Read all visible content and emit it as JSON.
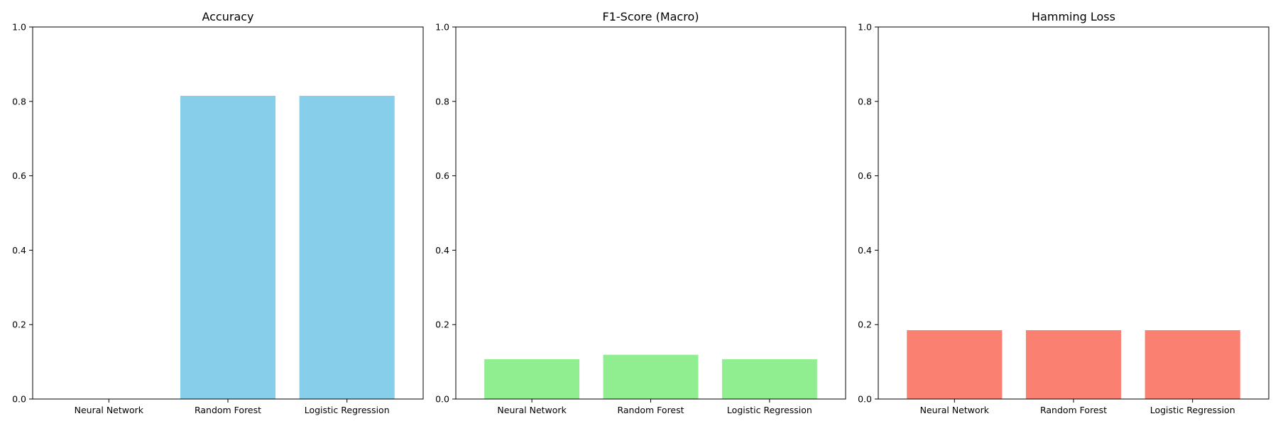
{
  "chart_data": [
    {
      "type": "bar",
      "title": "Accuracy",
      "categories": [
        "Neural Network",
        "Random Forest",
        "Logistic Regression"
      ],
      "values": [
        0.0,
        0.815,
        0.815
      ],
      "ylim": [
        0,
        1
      ],
      "yticks": [
        0.0,
        0.2,
        0.4,
        0.6,
        0.8,
        1.0
      ],
      "ytick_labels": [
        "0.0",
        "0.2",
        "0.4",
        "0.6",
        "0.8",
        "1.0"
      ],
      "color": "#87ceeb",
      "grid": false
    },
    {
      "type": "bar",
      "title": "F1-Score (Macro)",
      "categories": [
        "Neural Network",
        "Random Forest",
        "Logistic Regression"
      ],
      "values": [
        0.107,
        0.119,
        0.107
      ],
      "ylim": [
        0,
        1
      ],
      "yticks": [
        0.0,
        0.2,
        0.4,
        0.6,
        0.8,
        1.0
      ],
      "ytick_labels": [
        "0.0",
        "0.2",
        "0.4",
        "0.6",
        "0.8",
        "1.0"
      ],
      "color": "#90ee90",
      "grid": false
    },
    {
      "type": "bar",
      "title": "Hamming Loss",
      "categories": [
        "Neural Network",
        "Random Forest",
        "Logistic Regression"
      ],
      "values": [
        0.185,
        0.185,
        0.185
      ],
      "ylim": [
        0,
        1
      ],
      "yticks": [
        0.0,
        0.2,
        0.4,
        0.6,
        0.8,
        1.0
      ],
      "ytick_labels": [
        "0.0",
        "0.2",
        "0.4",
        "0.6",
        "0.8",
        "1.0"
      ],
      "color": "#fa8072",
      "grid": false
    }
  ]
}
